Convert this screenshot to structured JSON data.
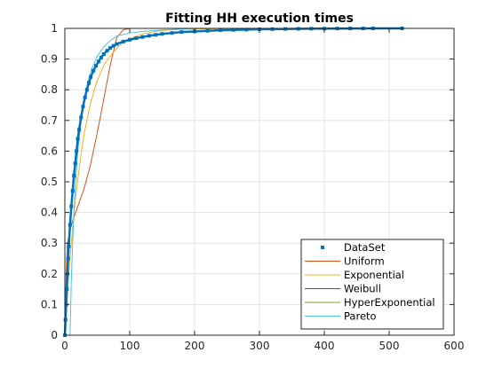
{
  "chart_data": {
    "type": "line",
    "title": "Fitting HH execution times",
    "xlabel": "",
    "ylabel": "",
    "xlim": [
      0,
      600
    ],
    "ylim": [
      0,
      1
    ],
    "xticks": [
      0,
      100,
      200,
      300,
      400,
      500,
      600
    ],
    "yticks": [
      0,
      0.1,
      0.2,
      0.3,
      0.4,
      0.5,
      0.6,
      0.7,
      0.8,
      0.9,
      1
    ],
    "grid": true,
    "legend_position": "bottom-right",
    "series": [
      {
        "name": "DataSet",
        "style": "markers",
        "color": "#0072BD",
        "x": [
          0,
          1,
          2,
          3,
          4,
          5,
          6,
          8,
          10,
          12,
          14,
          16,
          18,
          20,
          22,
          25,
          28,
          31,
          34,
          37,
          40,
          44,
          48,
          52,
          56,
          60,
          65,
          70,
          75,
          80,
          90,
          100,
          110,
          120,
          130,
          140,
          150,
          165,
          180,
          200,
          220,
          240,
          260,
          280,
          300,
          320,
          340,
          360,
          380,
          400,
          420,
          440,
          460,
          475,
          520
        ],
        "y": [
          0,
          0.05,
          0.1,
          0.15,
          0.2,
          0.25,
          0.29,
          0.36,
          0.42,
          0.47,
          0.52,
          0.56,
          0.6,
          0.64,
          0.67,
          0.71,
          0.745,
          0.775,
          0.8,
          0.822,
          0.842,
          0.862,
          0.878,
          0.892,
          0.905,
          0.916,
          0.927,
          0.936,
          0.943,
          0.949,
          0.957,
          0.963,
          0.968,
          0.972,
          0.976,
          0.979,
          0.982,
          0.985,
          0.988,
          0.99,
          0.992,
          0.994,
          0.995,
          0.996,
          0.997,
          0.9975,
          0.998,
          0.9985,
          0.999,
          0.9992,
          0.9994,
          0.9996,
          0.9998,
          0.9999,
          1.0
        ]
      },
      {
        "name": "Uniform",
        "style": "line",
        "color": "#D95319",
        "x": [
          0,
          2,
          4,
          10,
          20,
          30,
          40,
          50,
          60,
          70,
          80,
          90,
          100
        ],
        "y": [
          0,
          0.2,
          0.3,
          0.36,
          0.42,
          0.48,
          0.56,
          0.66,
          0.77,
          0.88,
          0.97,
          0.995,
          1.0
        ]
      },
      {
        "name": "Exponential",
        "style": "line",
        "color": "#EDB120",
        "x": [
          0,
          2,
          5,
          8,
          12,
          16,
          20,
          25,
          30,
          35,
          40,
          50,
          60,
          70,
          80,
          90,
          100,
          120,
          140,
          160,
          180,
          200,
          250,
          300
        ],
        "y": [
          0,
          0.07,
          0.17,
          0.25,
          0.35,
          0.44,
          0.51,
          0.59,
          0.66,
          0.71,
          0.76,
          0.83,
          0.88,
          0.91,
          0.935,
          0.955,
          0.966,
          0.982,
          0.99,
          0.995,
          0.997,
          0.998,
          0.9995,
          1.0
        ]
      },
      {
        "name": "Weibull",
        "style": "line",
        "color": "#7E2F8E",
        "x": [
          0,
          300,
          600
        ],
        "y": [
          0,
          0,
          0
        ]
      },
      {
        "name": "HyperExponential",
        "style": "line",
        "color": "#77AC30",
        "x": [
          0,
          1,
          2,
          3,
          4,
          5,
          6,
          8,
          10,
          12,
          14,
          16,
          18,
          20,
          22,
          25,
          28,
          31,
          34,
          37,
          40,
          44,
          48,
          52,
          56,
          60,
          65,
          70,
          75,
          80,
          90,
          100,
          110,
          120,
          130,
          140,
          150,
          165,
          180,
          200,
          220,
          240,
          260,
          280,
          300,
          320,
          340,
          360,
          380,
          400,
          420,
          440,
          460,
          475,
          520
        ],
        "y": [
          0,
          0.05,
          0.1,
          0.15,
          0.2,
          0.25,
          0.29,
          0.36,
          0.42,
          0.47,
          0.52,
          0.56,
          0.6,
          0.64,
          0.67,
          0.71,
          0.745,
          0.775,
          0.8,
          0.822,
          0.842,
          0.862,
          0.878,
          0.892,
          0.905,
          0.916,
          0.927,
          0.936,
          0.943,
          0.949,
          0.957,
          0.963,
          0.968,
          0.972,
          0.976,
          0.979,
          0.982,
          0.985,
          0.988,
          0.99,
          0.992,
          0.994,
          0.995,
          0.996,
          0.997,
          0.9975,
          0.998,
          0.9985,
          0.999,
          0.9992,
          0.9994,
          0.9996,
          0.9998,
          0.9999,
          1.0
        ]
      },
      {
        "name": "Pareto",
        "style": "line",
        "color": "#4DBEEE",
        "x": [
          0,
          8,
          10,
          12,
          14,
          16,
          20,
          25,
          30,
          35,
          40,
          50,
          60,
          70,
          80,
          100,
          120,
          150,
          200
        ],
        "y": [
          0,
          0,
          0.18,
          0.3,
          0.4,
          0.48,
          0.6,
          0.7,
          0.77,
          0.82,
          0.86,
          0.91,
          0.94,
          0.96,
          0.975,
          0.985,
          0.99,
          0.995,
          1.0
        ]
      }
    ]
  }
}
